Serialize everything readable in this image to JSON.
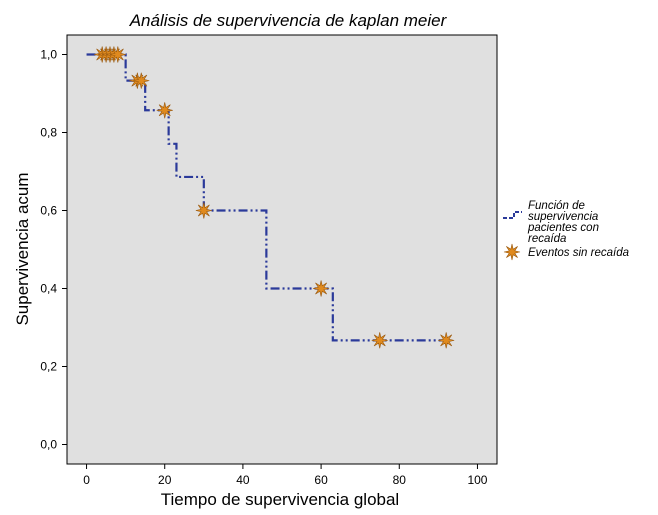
{
  "chart_data": {
    "type": "line",
    "title": "Análisis de supervivencia de kaplan meier",
    "xlabel": "Tiempo de supervivencia global",
    "ylabel": "Supervivencia acum",
    "xlim": [
      -5,
      105
    ],
    "ylim": [
      -0.05,
      1.05
    ],
    "x_ticks": [
      0,
      20,
      40,
      60,
      80,
      100
    ],
    "x_tick_labels": [
      "0",
      "20",
      "40",
      "60",
      "80",
      "100"
    ],
    "y_ticks": [
      0.0,
      0.2,
      0.4,
      0.6,
      0.8,
      1.0
    ],
    "y_tick_labels": [
      "0,0",
      "0,2",
      "0,4",
      "0,6",
      "0,8",
      "1,0"
    ],
    "grid": false,
    "background_color": "#e0e0e0",
    "legend_position": "right",
    "series": [
      {
        "name": "Función de supervivencia pacientes con recaída",
        "legend_lines": [
          "Función de",
          "supervivencia",
          "pacientes con",
          "recaída"
        ],
        "style": "step",
        "color": "#2b3a9a",
        "x": [
          0,
          10,
          15,
          21,
          23,
          30,
          46,
          63,
          92
        ],
        "y": [
          1.0,
          0.933,
          0.857,
          0.771,
          0.686,
          0.6,
          0.4,
          0.267,
          0.267
        ]
      },
      {
        "name": "Eventos sin recaída",
        "style": "marker",
        "color": "#e08a1e",
        "x": [
          4,
          5,
          6,
          7,
          8,
          13,
          14,
          20,
          30,
          60,
          75,
          92
        ],
        "y": [
          1.0,
          1.0,
          1.0,
          1.0,
          1.0,
          0.933,
          0.933,
          0.857,
          0.6,
          0.4,
          0.267,
          0.267
        ]
      }
    ]
  }
}
